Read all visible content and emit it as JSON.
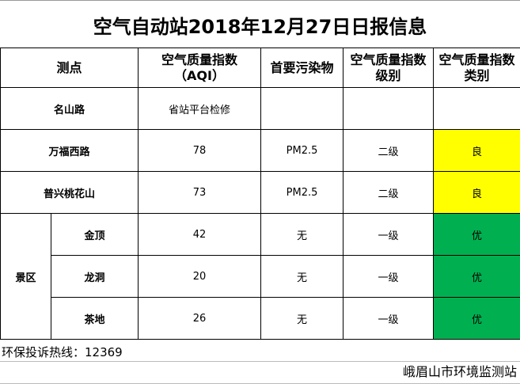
{
  "title": "空气自动站2018年12月27日日报信息",
  "headers": {
    "site": "测点",
    "aqi": "空气质量指数（AQI）",
    "pollutant": "首要污染物",
    "level": "空气质量指数级别",
    "category": "空气质量指数类别"
  },
  "rows": [
    {
      "name": "名山路",
      "aqi": "省站平台检修",
      "pollutant": "",
      "level": "",
      "category": ""
    },
    {
      "name": "万福西路",
      "aqi": "78",
      "pollutant": "PM2.5",
      "level": "二级",
      "category": "良"
    },
    {
      "name": "普兴桃花山",
      "aqi": "73",
      "pollutant": "PM2.5",
      "level": "二级",
      "category": "良"
    }
  ],
  "scenic": {
    "label": "景区",
    "rows": [
      {
        "name": "金顶",
        "aqi": "42",
        "pollutant": "无",
        "level": "一级",
        "category": "优"
      },
      {
        "name": "龙洞",
        "aqi": "20",
        "pollutant": "无",
        "level": "一级",
        "category": "优"
      },
      {
        "name": "茶地",
        "aqi": "26",
        "pollutant": "无",
        "level": "一级",
        "category": "优"
      }
    ]
  },
  "hotline": "环保投诉热线：12369",
  "footer": "峨眉山市环境监测站",
  "colors": {
    "good": "#ffff00",
    "excellent": "#00b050"
  }
}
